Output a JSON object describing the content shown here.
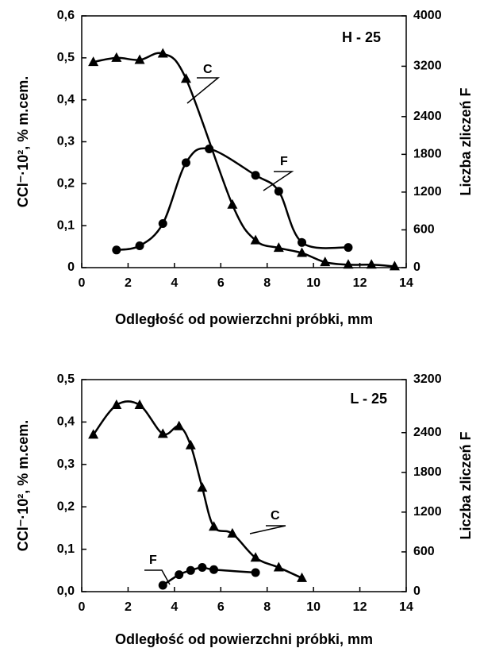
{
  "chart_data": [
    {
      "type": "line",
      "annotations": [
        "H - 25",
        "C",
        "F"
      ],
      "x_label": "Odległość od powierzchni próbki,  mm",
      "y_label": "CCl⁻·10², % m.cem.",
      "y2_label": "Liczba zliczeń F",
      "xlim": [
        0,
        14
      ],
      "xticks": [
        0,
        2,
        4,
        6,
        8,
        10,
        12,
        14
      ],
      "ylim": [
        0,
        0.6
      ],
      "yticks": [
        0,
        {
          "value": 0.1,
          "label": "0,1"
        },
        {
          "value": 0.2,
          "label": "0,2"
        },
        {
          "value": 0.3,
          "label": "0,3"
        },
        {
          "value": 0.4,
          "label": "0,4"
        },
        {
          "value": 0.5,
          "label": "0,5"
        },
        {
          "value": 0.6,
          "label": "0,6"
        }
      ],
      "y2lim": [
        0,
        4000
      ],
      "y2ticks": [
        0,
        600,
        1200,
        1800,
        2400,
        3200,
        4000
      ],
      "series": [
        {
          "name": "C",
          "color": "#000000",
          "marker": "triangle",
          "x": [
            0.5,
            1.5,
            2.5,
            3.5,
            4.5,
            6.5,
            7.5,
            8.5,
            9.5,
            10.5,
            11.5,
            12.5,
            13.5
          ],
          "values": [
            0.49,
            0.5,
            0.495,
            0.51,
            0.45,
            0.15,
            0.065,
            0.047,
            0.035,
            0.013,
            0.007,
            0.007,
            0.003
          ]
        },
        {
          "name": "F",
          "color": "#000000",
          "marker": "circle",
          "axis": "y2",
          "x": [
            1.5,
            2.5,
            3.5,
            4.5,
            5.5,
            7.5,
            8.5,
            9.5,
            11.5
          ],
          "values": [
            280,
            347,
            700,
            1667,
            1887,
            1467,
            1213,
            400,
            320
          ]
        }
      ]
    },
    {
      "type": "line",
      "annotations": [
        "L - 25",
        "C",
        "F"
      ],
      "x_label": "Odległość od powierzchni próbki,  mm",
      "y_label": "CCl⁻·10², % m.cem.",
      "y2_label": "Liczba zliczeń F",
      "xlim": [
        0,
        14
      ],
      "xticks": [
        0,
        2,
        4,
        6,
        8,
        10,
        12,
        14
      ],
      "ylim": [
        0,
        0.5
      ],
      "yticks": [
        {
          "value": 0,
          "label": "0,0"
        },
        {
          "value": 0.1,
          "label": "0,1"
        },
        {
          "value": 0.2,
          "label": "0,2"
        },
        {
          "value": 0.3,
          "label": "0,3"
        },
        {
          "value": 0.4,
          "label": "0,4"
        },
        {
          "value": 0.5,
          "label": "0,5"
        }
      ],
      "y2lim": [
        0,
        3200
      ],
      "y2ticks": [
        0,
        600,
        1200,
        1800,
        2400,
        3200
      ],
      "series": [
        {
          "name": "C",
          "color": "#000000",
          "marker": "triangle",
          "x": [
            0.5,
            1.5,
            2.5,
            3.5,
            4.2,
            4.7,
            5.2,
            5.7,
            6.5,
            7.5,
            8.5,
            9.5
          ],
          "values": [
            0.37,
            0.44,
            0.44,
            0.372,
            0.39,
            0.345,
            0.245,
            0.153,
            0.137,
            0.08,
            0.057,
            0.032
          ]
        },
        {
          "name": "F",
          "color": "#000000",
          "marker": "circle",
          "axis": "y2",
          "x": [
            3.5,
            4.2,
            4.7,
            5.2,
            5.7,
            7.5
          ],
          "values": [
            96,
            256,
            320,
            365,
            333,
            288
          ]
        }
      ]
    }
  ]
}
